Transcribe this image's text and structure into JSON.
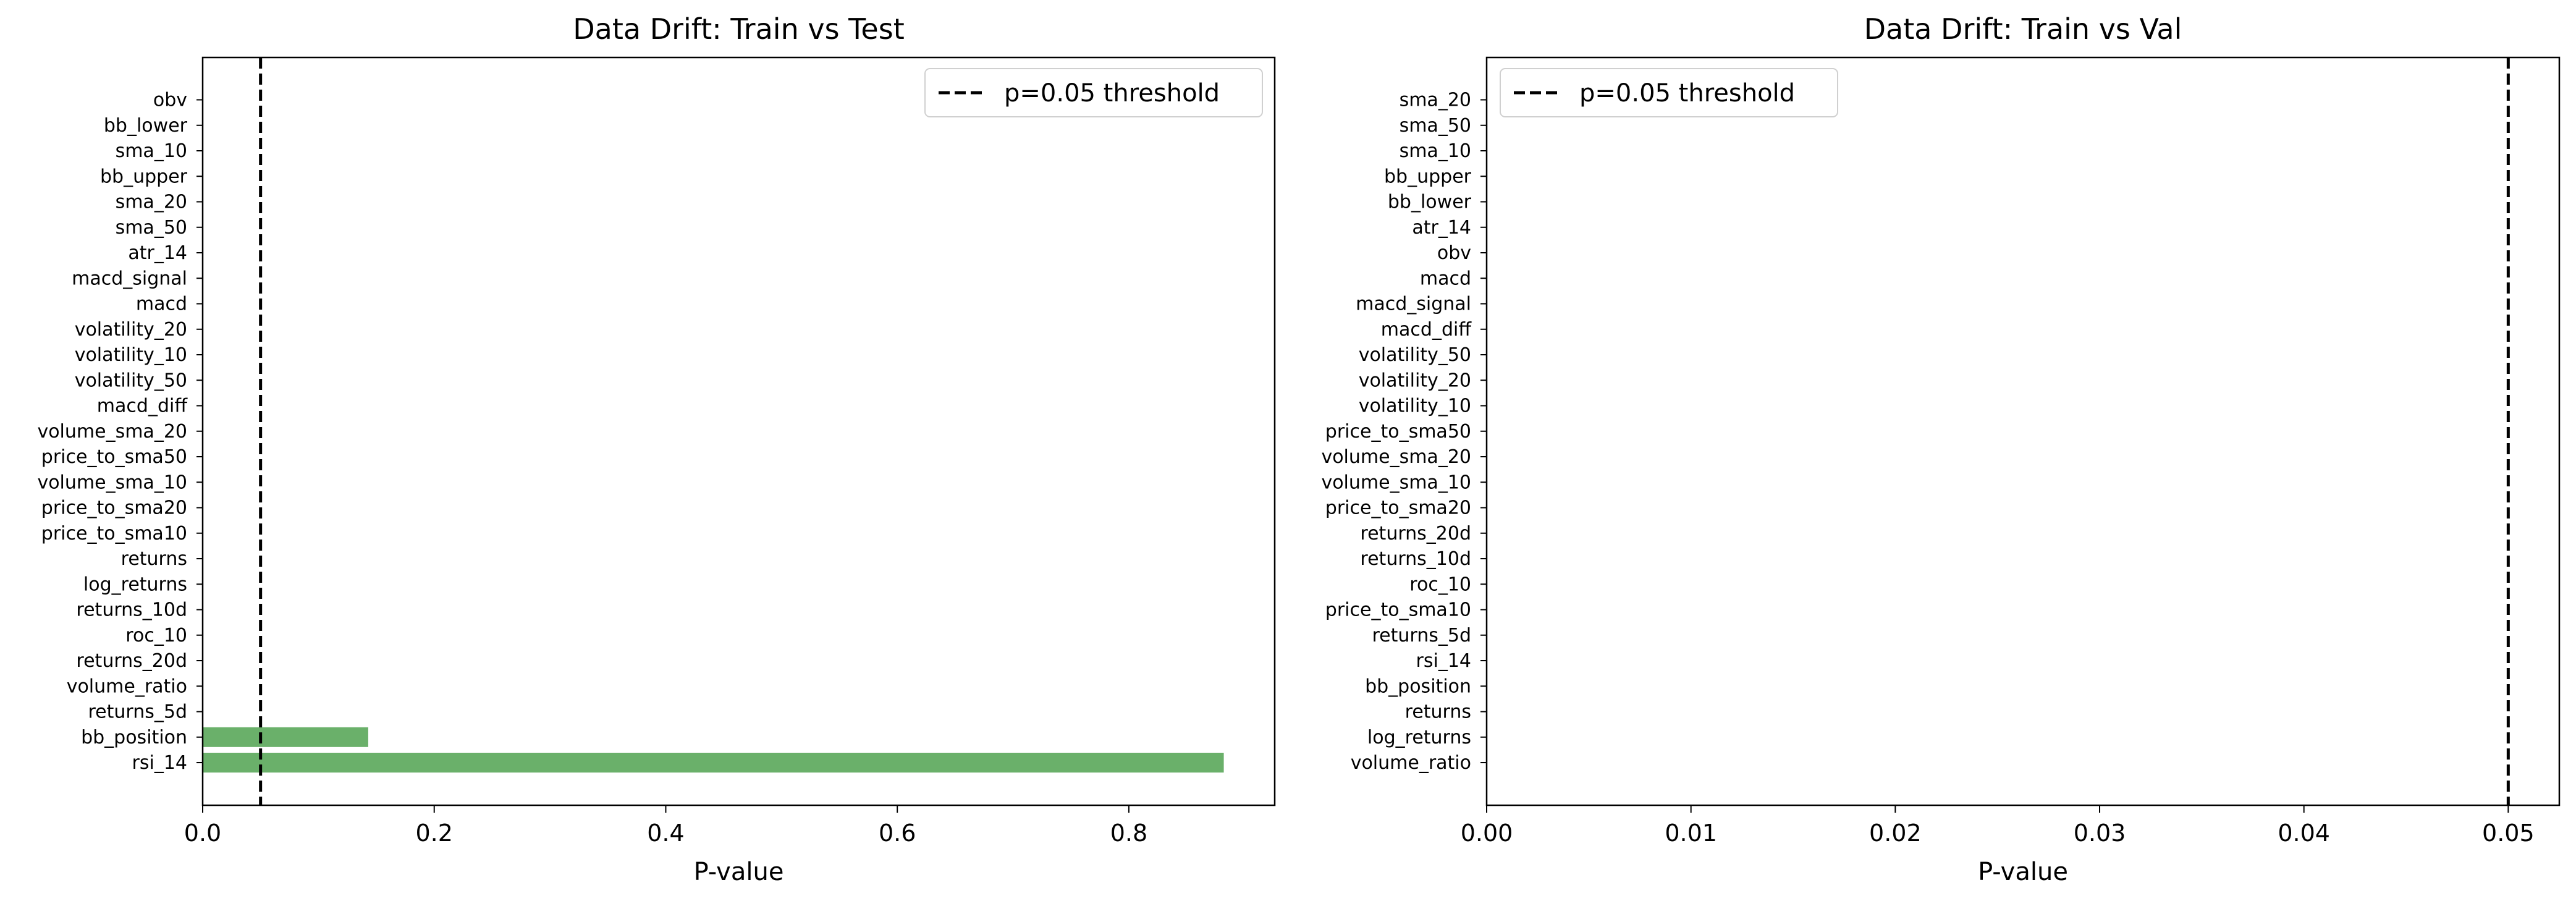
{
  "chart_data": [
    {
      "type": "bar",
      "orientation": "horizontal",
      "title": "Data Drift: Train vs Test",
      "xlabel": "P-value",
      "ylabel": "",
      "xlim": [
        0,
        0.926
      ],
      "xticks": [
        "0.0",
        "0.2",
        "0.4",
        "0.6",
        "0.8"
      ],
      "xtick_values": [
        0,
        0.2,
        0.4,
        0.6,
        0.8
      ],
      "bar_color": "#6ab06a",
      "threshold": 0.05,
      "threshold_color": "#000000",
      "legend_label": "p=0.05 threshold",
      "legend_position": "top-right",
      "grid": false,
      "categories": [
        "rsi_14",
        "bb_position",
        "returns_5d",
        "volume_ratio",
        "returns_20d",
        "roc_10",
        "returns_10d",
        "log_returns",
        "returns",
        "price_to_sma10",
        "price_to_sma20",
        "volume_sma_10",
        "price_to_sma50",
        "volume_sma_20",
        "macd_diff",
        "volatility_50",
        "volatility_10",
        "volatility_20",
        "macd",
        "macd_signal",
        "atr_14",
        "sma_50",
        "sma_20",
        "bb_upper",
        "sma_10",
        "bb_lower",
        "obv"
      ],
      "values": [
        0.882,
        0.143,
        0,
        0,
        0,
        0,
        0,
        0,
        0,
        0,
        0,
        0,
        0,
        0,
        0,
        0,
        0,
        0,
        0,
        0,
        0,
        0,
        0,
        0,
        0,
        0,
        0
      ]
    },
    {
      "type": "bar",
      "orientation": "horizontal",
      "title": "Data Drift: Train vs Val",
      "xlabel": "P-value",
      "ylabel": "",
      "xlim": [
        0,
        0.0525
      ],
      "xticks": [
        "0.00",
        "0.01",
        "0.02",
        "0.03",
        "0.04",
        "0.05"
      ],
      "xtick_values": [
        0,
        0.01,
        0.02,
        0.03,
        0.04,
        0.05
      ],
      "bar_color": "#6ab06a",
      "threshold": 0.05,
      "threshold_color": "#000000",
      "legend_label": "p=0.05 threshold",
      "legend_position": "top-left",
      "grid": false,
      "categories": [
        "volume_ratio",
        "log_returns",
        "returns",
        "bb_position",
        "rsi_14",
        "returns_5d",
        "price_to_sma10",
        "roc_10",
        "returns_10d",
        "returns_20d",
        "price_to_sma20",
        "volume_sma_10",
        "volume_sma_20",
        "price_to_sma50",
        "volatility_10",
        "volatility_20",
        "volatility_50",
        "macd_diff",
        "macd_signal",
        "macd",
        "obv",
        "atr_14",
        "bb_lower",
        "bb_upper",
        "sma_10",
        "sma_50",
        "sma_20"
      ],
      "values": [
        0,
        0,
        0,
        0,
        0,
        0,
        0,
        0,
        0,
        0,
        0,
        0,
        0,
        0,
        0,
        0,
        0,
        0,
        0,
        0,
        0,
        0,
        0,
        0,
        0,
        0,
        0
      ]
    }
  ]
}
